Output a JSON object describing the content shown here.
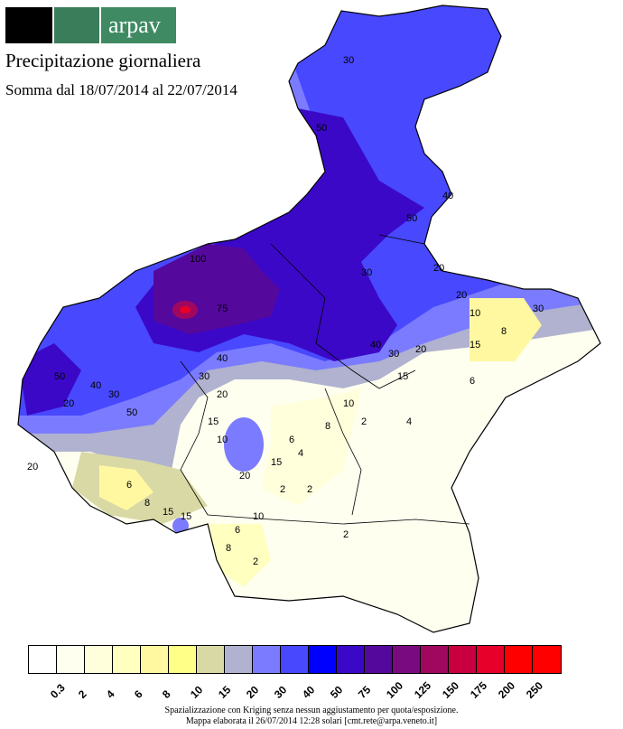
{
  "header": {
    "logo_text": "arpav",
    "title": "Precipitazione giornaliera",
    "subtitle": "Somma dal 18/07/2014 al 22/07/2014"
  },
  "legend": {
    "classes": [
      {
        "label": "0.3",
        "color": "#ffffff"
      },
      {
        "label": "2",
        "color": "#fffff0"
      },
      {
        "label": "4",
        "color": "#ffffdc"
      },
      {
        "label": "6",
        "color": "#ffffc0"
      },
      {
        "label": "8",
        "color": "#fff8a0"
      },
      {
        "label": "10",
        "color": "#ffff88"
      },
      {
        "label": "15",
        "color": "#d9d9a6"
      },
      {
        "label": "20",
        "color": "#b0b2cf"
      },
      {
        "label": "30",
        "color": "#7b7bff"
      },
      {
        "label": "40",
        "color": "#4848ff"
      },
      {
        "label": "50",
        "color": "#0000ff"
      },
      {
        "label": "75",
        "color": "#3b08c8"
      },
      {
        "label": "100",
        "color": "#55089c"
      },
      {
        "label": "125",
        "color": "#7a0a7f"
      },
      {
        "label": "150",
        "color": "#a00860"
      },
      {
        "label": "175",
        "color": "#c8003f"
      },
      {
        "label": "200",
        "color": "#e6002a"
      },
      {
        "label": "250",
        "color": "#ff0000"
      },
      {
        "label": "",
        "color": "#ff0000"
      }
    ]
  },
  "map_labels": [
    "30",
    "50",
    "40",
    "50",
    "30",
    "20",
    "30",
    "20",
    "15",
    "10",
    "8",
    "6",
    "4",
    "2",
    "2",
    "2",
    "2",
    "40",
    "30",
    "20",
    "15",
    "10",
    "6",
    "8",
    "15",
    "20",
    "30",
    "40",
    "50",
    "50",
    "75",
    "100",
    "40",
    "30",
    "20",
    "15",
    "10",
    "8",
    "6",
    "4",
    "2",
    "20",
    "15",
    "10",
    "6",
    "8",
    "15",
    "20"
  ],
  "footer": {
    "line1": "Spazializzazione con Kriging senza nessun aggiustamento per quota/esposizione.",
    "line2": "Mappa elaborata il 26/07/2014 12:28 solari [cmt.rete@arpa.veneto.it]"
  }
}
